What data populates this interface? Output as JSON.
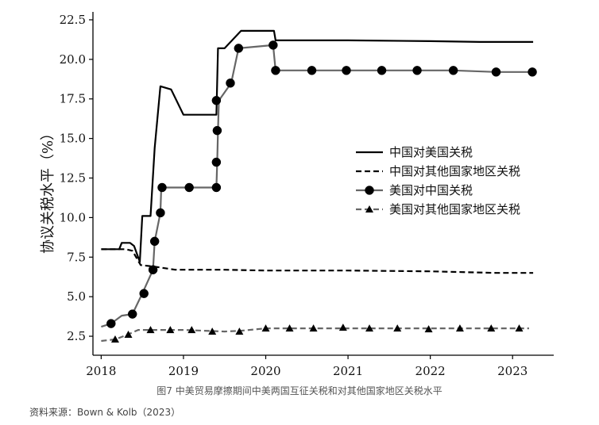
{
  "caption": "图7 中美贸易摩擦期间中美两国互征关税和对其他国家地区关税水平",
  "source": "资料来源：Bown & Kolb（2023）",
  "chart_data": {
    "type": "line",
    "ylabel": "协议关税水平（%）",
    "xlim": [
      2017.9,
      2023.5
    ],
    "ylim": [
      1.3,
      23.0
    ],
    "xticks": [
      2018,
      2019,
      2020,
      2021,
      2022,
      2023
    ],
    "yticks": [
      2.5,
      5.0,
      7.5,
      10.0,
      12.5,
      15.0,
      17.5,
      20.0,
      22.5
    ],
    "ytick_labels": [
      "2.5",
      "5.0",
      "7.5",
      "10.0",
      "12.5",
      "15.0",
      "17.5",
      "20.0",
      "22.5"
    ],
    "grid": false,
    "legend_position": "right",
    "series": [
      {
        "name": "中国对美国关税",
        "color": "#000000",
        "style": "solid",
        "marker": "none",
        "points": [
          [
            2018.0,
            8.0
          ],
          [
            2018.22,
            8.0
          ],
          [
            2018.25,
            8.4
          ],
          [
            2018.35,
            8.4
          ],
          [
            2018.4,
            8.2
          ],
          [
            2018.47,
            7.2
          ],
          [
            2018.5,
            10.1
          ],
          [
            2018.6,
            10.1
          ],
          [
            2018.65,
            14.4
          ],
          [
            2018.72,
            18.3
          ],
          [
            2018.85,
            18.1
          ],
          [
            2019.0,
            16.5
          ],
          [
            2019.4,
            16.5
          ],
          [
            2019.42,
            20.7
          ],
          [
            2019.5,
            20.7
          ],
          [
            2019.7,
            21.8
          ],
          [
            2020.1,
            21.8
          ],
          [
            2020.12,
            21.2
          ],
          [
            2020.5,
            21.2
          ],
          [
            2021.0,
            21.2
          ],
          [
            2022.0,
            21.15
          ],
          [
            2022.6,
            21.1
          ],
          [
            2023.25,
            21.1
          ]
        ]
      },
      {
        "name": "中国对其他国家地区关税",
        "color": "#000000",
        "style": "dashed",
        "marker": "none",
        "points": [
          [
            2018.0,
            8.0
          ],
          [
            2018.3,
            8.0
          ],
          [
            2018.38,
            7.9
          ],
          [
            2018.48,
            7.0
          ],
          [
            2018.65,
            6.9
          ],
          [
            2018.9,
            6.7
          ],
          [
            2019.5,
            6.7
          ],
          [
            2020.0,
            6.65
          ],
          [
            2021.0,
            6.65
          ],
          [
            2022.0,
            6.6
          ],
          [
            2022.8,
            6.5
          ],
          [
            2023.25,
            6.5
          ]
        ]
      },
      {
        "name": "美国对中国关税",
        "color": "#666666",
        "style": "solid",
        "marker": "circle",
        "points": [
          [
            2018.0,
            3.1
          ],
          [
            2018.12,
            3.3
          ],
          [
            2018.25,
            3.8
          ],
          [
            2018.38,
            3.9
          ],
          [
            2018.5,
            5.2
          ],
          [
            2018.63,
            6.7
          ],
          [
            2018.65,
            8.5
          ],
          [
            2018.72,
            10.3
          ],
          [
            2018.73,
            11.9
          ],
          [
            2019.07,
            11.9
          ],
          [
            2019.4,
            11.9
          ],
          [
            2019.41,
            13.5
          ],
          [
            2019.42,
            15.5
          ],
          [
            2019.43,
            17.4
          ],
          [
            2019.58,
            18.5
          ],
          [
            2019.67,
            20.7
          ],
          [
            2020.09,
            20.9
          ],
          [
            2020.12,
            19.3
          ],
          [
            2020.56,
            19.3
          ],
          [
            2020.98,
            19.3
          ],
          [
            2021.41,
            19.3
          ],
          [
            2021.84,
            19.3
          ],
          [
            2022.28,
            19.3
          ],
          [
            2022.8,
            19.2
          ],
          [
            2023.24,
            19.2
          ]
        ],
        "marker_points": [
          [
            2018.12,
            3.3
          ],
          [
            2018.38,
            3.9
          ],
          [
            2018.52,
            5.2
          ],
          [
            2018.63,
            6.7
          ],
          [
            2018.65,
            8.5
          ],
          [
            2018.72,
            10.3
          ],
          [
            2018.74,
            11.9
          ],
          [
            2019.07,
            11.9
          ],
          [
            2019.4,
            11.9
          ],
          [
            2019.4,
            13.5
          ],
          [
            2019.41,
            15.5
          ],
          [
            2019.4,
            17.4
          ],
          [
            2019.57,
            18.5
          ],
          [
            2019.67,
            20.7
          ],
          [
            2020.09,
            20.9
          ],
          [
            2020.12,
            19.3
          ],
          [
            2020.56,
            19.3
          ],
          [
            2020.98,
            19.3
          ],
          [
            2021.41,
            19.3
          ],
          [
            2021.84,
            19.3
          ],
          [
            2022.28,
            19.3
          ],
          [
            2022.8,
            19.2
          ],
          [
            2023.24,
            19.2
          ]
        ]
      },
      {
        "name": "美国对其他国家地区关税",
        "color": "#666666",
        "style": "dashed",
        "marker": "triangle",
        "points": [
          [
            2018.0,
            2.2
          ],
          [
            2018.17,
            2.3
          ],
          [
            2018.32,
            2.6
          ],
          [
            2018.45,
            2.9
          ],
          [
            2019.0,
            2.9
          ],
          [
            2019.5,
            2.8
          ],
          [
            2019.7,
            2.85
          ],
          [
            2020.0,
            3.0
          ],
          [
            2021.0,
            3.0
          ],
          [
            2022.0,
            3.0
          ],
          [
            2023.2,
            3.0
          ]
        ],
        "marker_points": [
          [
            2018.17,
            2.3
          ],
          [
            2018.33,
            2.6
          ],
          [
            2018.6,
            2.9
          ],
          [
            2018.84,
            2.9
          ],
          [
            2019.1,
            2.9
          ],
          [
            2019.35,
            2.8
          ],
          [
            2019.68,
            2.8
          ],
          [
            2020.0,
            3.0
          ],
          [
            2020.29,
            3.0
          ],
          [
            2020.58,
            3.0
          ],
          [
            2020.94,
            3.05
          ],
          [
            2021.26,
            3.0
          ],
          [
            2021.6,
            3.0
          ],
          [
            2021.98,
            2.95
          ],
          [
            2022.36,
            3.0
          ],
          [
            2022.74,
            3.0
          ],
          [
            2023.08,
            3.0
          ]
        ]
      }
    ]
  }
}
